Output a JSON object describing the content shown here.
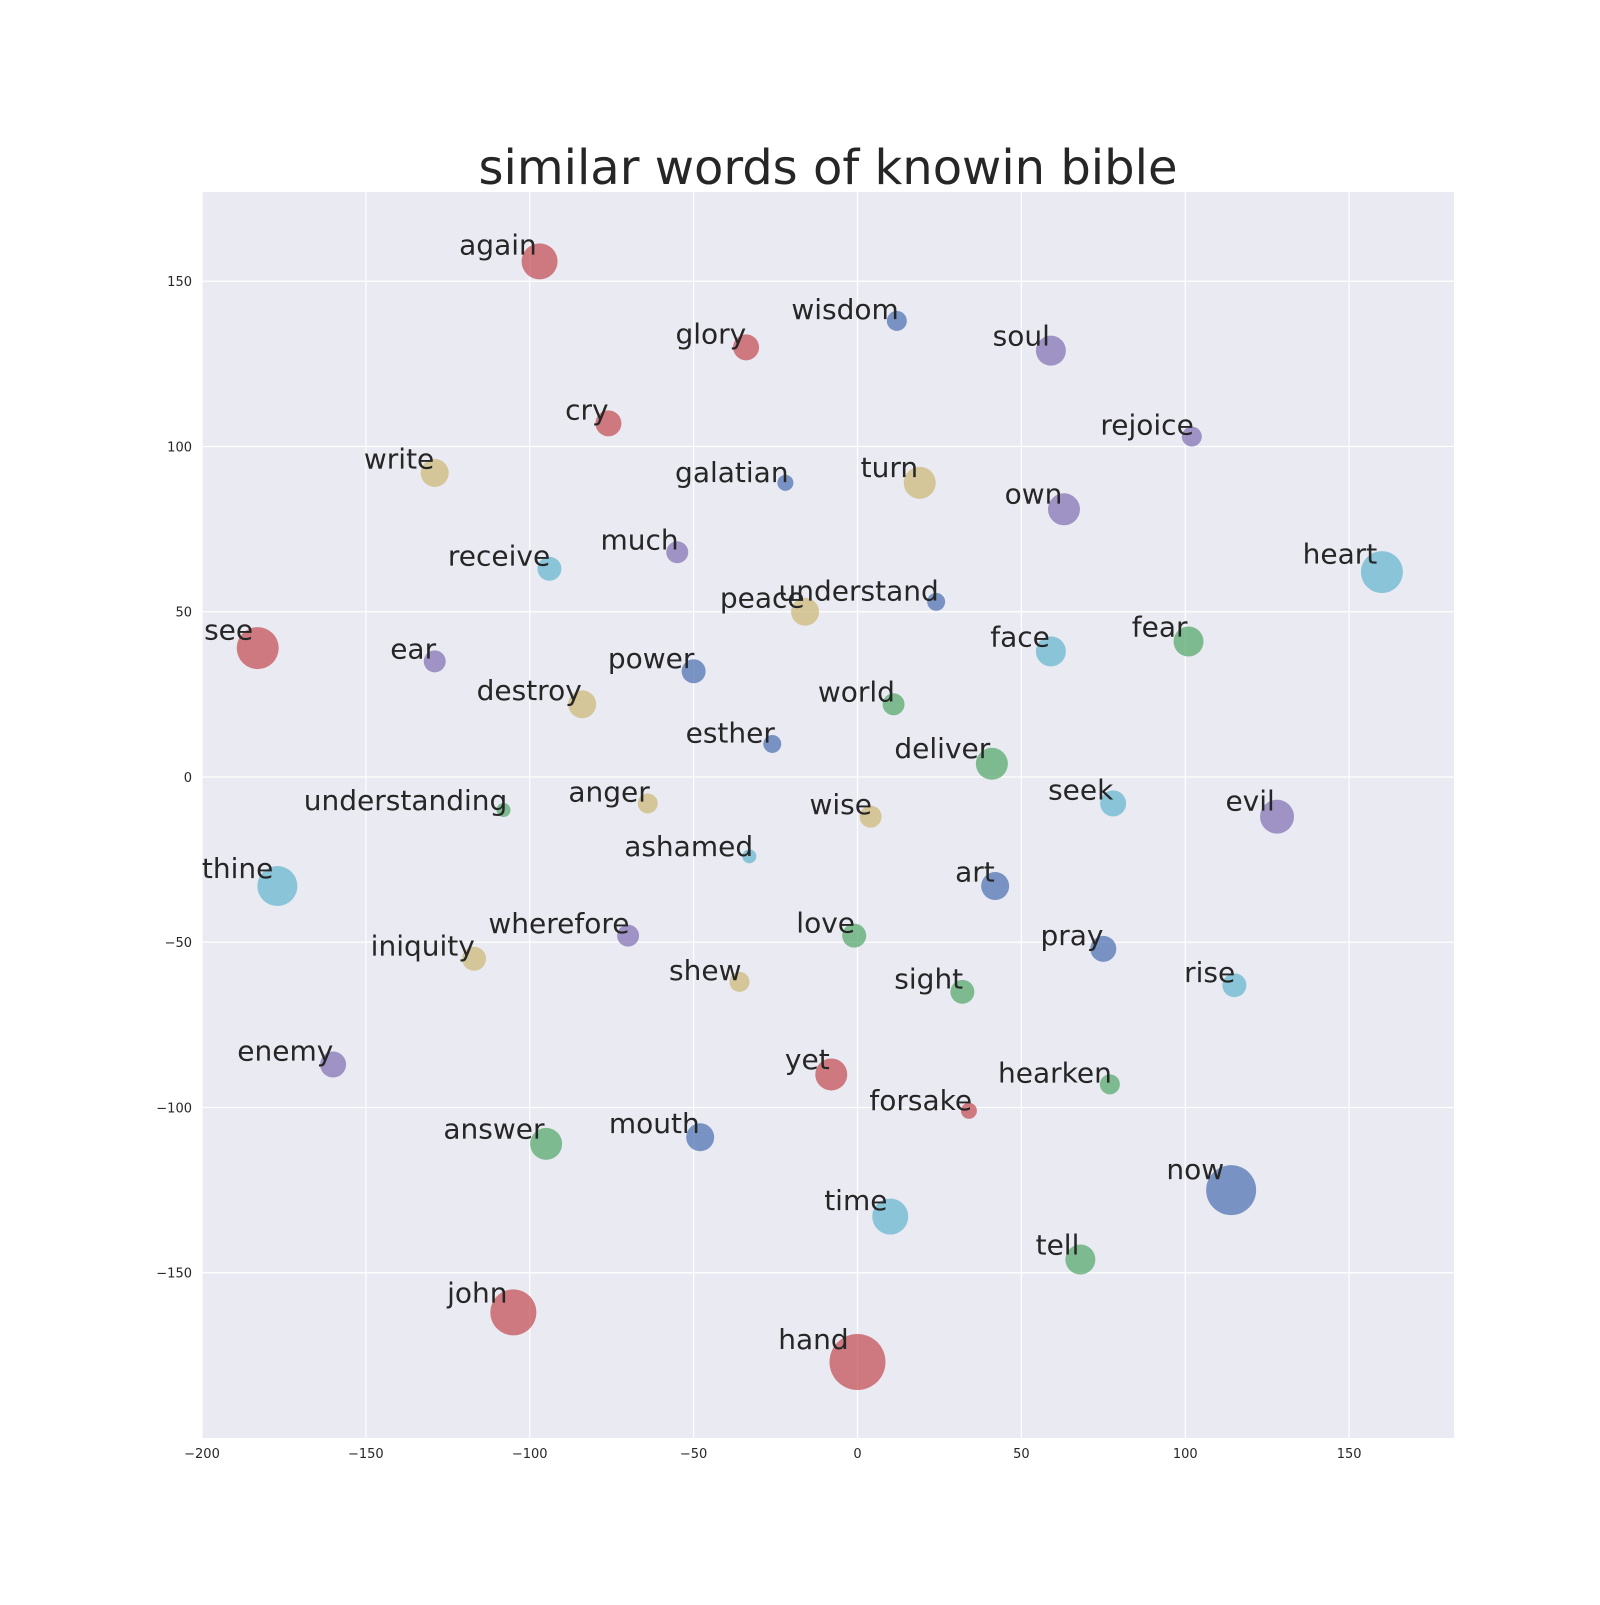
{
  "chart_data": {
    "type": "scatter",
    "title": "similar words of knowin bible",
    "xlabel": "",
    "ylabel": "",
    "xlim": [
      -200,
      182
    ],
    "ylim": [
      -200,
      177
    ],
    "x_ticks": [
      -200,
      -150,
      -100,
      -50,
      0,
      50,
      100,
      150
    ],
    "y_ticks": [
      150,
      100,
      50,
      0,
      -50,
      -100,
      -150
    ],
    "grid": true,
    "colors": {
      "background": "#eaeaf2",
      "grid": "#ffffff",
      "red": "#c44e52",
      "blue": "#4c72b0",
      "green": "#55a868",
      "purple": "#8172b2",
      "tan": "#ccb974",
      "cyan": "#64b5cd"
    },
    "points": [
      {
        "label": "again",
        "x": -97,
        "y": 156,
        "r": 18,
        "color": "red"
      },
      {
        "label": "wisdom",
        "x": 12,
        "y": 138,
        "r": 10,
        "color": "blue"
      },
      {
        "label": "glory",
        "x": -34,
        "y": 130,
        "r": 13,
        "color": "red"
      },
      {
        "label": "soul",
        "x": 59,
        "y": 129,
        "r": 15,
        "color": "purple"
      },
      {
        "label": "cry",
        "x": -76,
        "y": 107,
        "r": 13,
        "color": "red"
      },
      {
        "label": "rejoice",
        "x": 102,
        "y": 103,
        "r": 10,
        "color": "purple"
      },
      {
        "label": "write",
        "x": -129,
        "y": 92,
        "r": 14,
        "color": "tan"
      },
      {
        "label": "galatian",
        "x": -22,
        "y": 89,
        "r": 8,
        "color": "blue"
      },
      {
        "label": "turn",
        "x": 19,
        "y": 89,
        "r": 16,
        "color": "tan"
      },
      {
        "label": "own",
        "x": 63,
        "y": 81,
        "r": 16,
        "color": "purple"
      },
      {
        "label": "receive",
        "x": -94,
        "y": 63,
        "r": 12,
        "color": "cyan"
      },
      {
        "label": "much",
        "x": -55,
        "y": 68,
        "r": 11,
        "color": "purple"
      },
      {
        "label": "heart",
        "x": 160,
        "y": 62,
        "r": 21,
        "color": "cyan"
      },
      {
        "label": "understand",
        "x": 24,
        "y": 53,
        "r": 9,
        "color": "blue"
      },
      {
        "label": "peace",
        "x": -16,
        "y": 50,
        "r": 14,
        "color": "tan"
      },
      {
        "label": "see",
        "x": -183,
        "y": 39,
        "r": 21,
        "color": "red"
      },
      {
        "label": "ear",
        "x": -129,
        "y": 35,
        "r": 11,
        "color": "purple"
      },
      {
        "label": "power",
        "x": -50,
        "y": 32,
        "r": 12,
        "color": "blue"
      },
      {
        "label": "face",
        "x": 59,
        "y": 38,
        "r": 15,
        "color": "cyan"
      },
      {
        "label": "fear",
        "x": 101,
        "y": 41,
        "r": 15,
        "color": "green"
      },
      {
        "label": "destroy",
        "x": -84,
        "y": 22,
        "r": 14,
        "color": "tan"
      },
      {
        "label": "world",
        "x": 11,
        "y": 22,
        "r": 11,
        "color": "green"
      },
      {
        "label": "esther",
        "x": -26,
        "y": 10,
        "r": 9,
        "color": "blue"
      },
      {
        "label": "deliver",
        "x": 41,
        "y": 4,
        "r": 16,
        "color": "green"
      },
      {
        "label": "understanding",
        "x": -108,
        "y": -10,
        "r": 7,
        "color": "green"
      },
      {
        "label": "anger",
        "x": -64,
        "y": -8,
        "r": 10,
        "color": "tan"
      },
      {
        "label": "wise",
        "x": 4,
        "y": -12,
        "r": 11,
        "color": "tan"
      },
      {
        "label": "seek",
        "x": 78,
        "y": -8,
        "r": 13,
        "color": "cyan"
      },
      {
        "label": "evil",
        "x": 128,
        "y": -12,
        "r": 17,
        "color": "purple"
      },
      {
        "label": "ashamed",
        "x": -33,
        "y": -24,
        "r": 7,
        "color": "cyan"
      },
      {
        "label": "thine",
        "x": -177,
        "y": -33,
        "r": 20,
        "color": "cyan"
      },
      {
        "label": "art",
        "x": 42,
        "y": -33,
        "r": 14,
        "color": "blue"
      },
      {
        "label": "wherefore",
        "x": -70,
        "y": -48,
        "r": 11,
        "color": "purple"
      },
      {
        "label": "love",
        "x": -1,
        "y": -48,
        "r": 12,
        "color": "green"
      },
      {
        "label": "pray",
        "x": 75,
        "y": -52,
        "r": 13,
        "color": "blue"
      },
      {
        "label": "iniquity",
        "x": -117,
        "y": -55,
        "r": 12,
        "color": "tan"
      },
      {
        "label": "shew",
        "x": -36,
        "y": -62,
        "r": 10,
        "color": "tan"
      },
      {
        "label": "sight",
        "x": 32,
        "y": -65,
        "r": 12,
        "color": "green"
      },
      {
        "label": "rise",
        "x": 115,
        "y": -63,
        "r": 12,
        "color": "cyan"
      },
      {
        "label": "enemy",
        "x": -160,
        "y": -87,
        "r": 13,
        "color": "purple"
      },
      {
        "label": "yet",
        "x": -8,
        "y": -90,
        "r": 16,
        "color": "red"
      },
      {
        "label": "hearken",
        "x": 77,
        "y": -93,
        "r": 10,
        "color": "green"
      },
      {
        "label": "forsake",
        "x": 34,
        "y": -101,
        "r": 8,
        "color": "red"
      },
      {
        "label": "answer",
        "x": -95,
        "y": -111,
        "r": 16,
        "color": "green"
      },
      {
        "label": "mouth",
        "x": -48,
        "y": -109,
        "r": 14,
        "color": "blue"
      },
      {
        "label": "now",
        "x": 114,
        "y": -125,
        "r": 25,
        "color": "blue"
      },
      {
        "label": "time",
        "x": 10,
        "y": -133,
        "r": 18,
        "color": "cyan"
      },
      {
        "label": "tell",
        "x": 68,
        "y": -146,
        "r": 15,
        "color": "green"
      },
      {
        "label": "john",
        "x": -105,
        "y": -162,
        "r": 23,
        "color": "red"
      },
      {
        "label": "hand",
        "x": 0,
        "y": -177,
        "r": 28,
        "color": "red"
      }
    ]
  }
}
